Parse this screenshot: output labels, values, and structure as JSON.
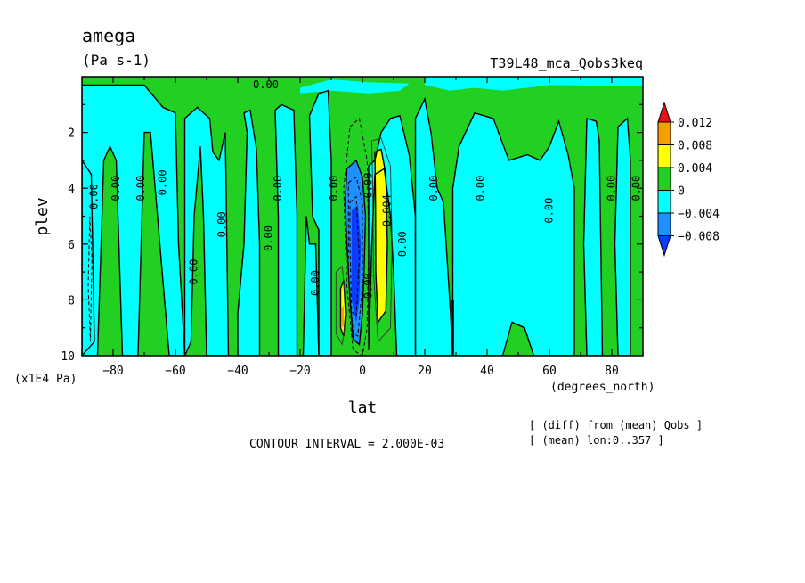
{
  "chart_data": {
    "type": "heatmap",
    "title": "amega",
    "units": "(Pa s-1)",
    "experiment": "T39L48_mca_Qobs3keq",
    "xlabel": "lat",
    "xunits": "(degrees_north)",
    "ylabel": "plev",
    "yunits": "(x1E4 Pa)",
    "xlim": [
      -90,
      90
    ],
    "ylim": [
      0,
      10
    ],
    "y_inverted": true,
    "x_ticks": [
      -80,
      -60,
      -40,
      -20,
      0,
      20,
      40,
      60,
      80
    ],
    "y_ticks": [
      2,
      4,
      6,
      8,
      10
    ],
    "contour_interval": "CONTOUR INTERVAL = 2.000E-03",
    "notes": [
      "[ (diff) from (mean) Qobs ]",
      "[ (mean) lon:0..357 ]"
    ],
    "colorbar": {
      "levels": [
        "0.012",
        "0.008",
        "0.004",
        "0",
        "−0.004",
        "−0.008"
      ],
      "colors": [
        "#e8101a",
        "#f5a000",
        "#ffff00",
        "#21d021",
        "#00ffff",
        "#1e90ff",
        "#0b3cff"
      ]
    },
    "contour_labels": [
      {
        "text": "0.00",
        "lat": -86,
        "plev": 4.3,
        "rot": -90
      },
      {
        "text": "0.00",
        "lat": -79,
        "plev": 4.0,
        "rot": -90
      },
      {
        "text": "0.00",
        "lat": -71,
        "plev": 4.0,
        "rot": -90
      },
      {
        "text": "0.00",
        "lat": -64,
        "plev": 3.8,
        "rot": -90
      },
      {
        "text": "0.00",
        "lat": -54,
        "plev": 7.0,
        "rot": -90
      },
      {
        "text": "0.00",
        "lat": -45,
        "plev": 5.3,
        "rot": -90
      },
      {
        "text": "0.00",
        "lat": -30,
        "plev": 5.8,
        "rot": -90
      },
      {
        "text": "0.00",
        "lat": -27,
        "plev": 4.0,
        "rot": -90
      },
      {
        "text": "0.00",
        "lat": -15,
        "plev": 7.4,
        "rot": -90
      },
      {
        "text": "0.00",
        "lat": -9,
        "plev": 4.0,
        "rot": -90
      },
      {
        "text": "0.00",
        "lat": 2,
        "plev": 3.9,
        "rot": -90
      },
      {
        "text": "0.00",
        "lat": 2,
        "plev": 7.5,
        "rot": -90
      },
      {
        "text": "0.004",
        "lat": 8,
        "plev": 4.8,
        "rot": -90
      },
      {
        "text": "0.00",
        "lat": 13,
        "plev": 6.0,
        "rot": -90
      },
      {
        "text": "0.00",
        "lat": 23,
        "plev": 4.0,
        "rot": -90
      },
      {
        "text": "0.00",
        "lat": 38,
        "plev": 4.0,
        "rot": -90
      },
      {
        "text": "0.00",
        "lat": 60,
        "plev": 4.8,
        "rot": -90
      },
      {
        "text": "0.00",
        "lat": 80,
        "plev": 4.0,
        "rot": -90
      },
      {
        "text": "0.00",
        "lat": 88,
        "plev": 4.0,
        "rot": -90
      },
      {
        "text": "0.00",
        "lat": -31,
        "plev": 0.3,
        "rot": 0
      }
    ]
  }
}
